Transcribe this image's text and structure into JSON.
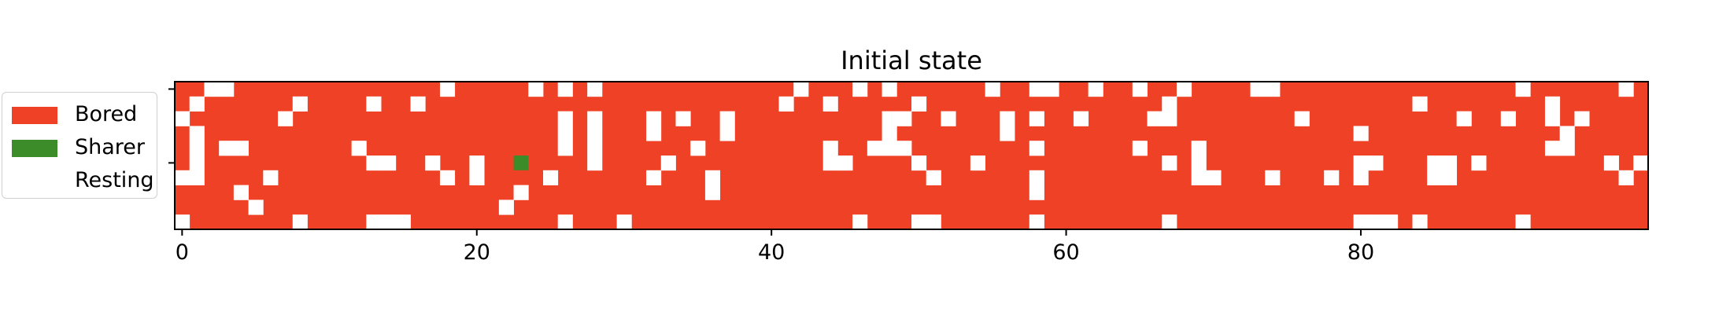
{
  "chart_data": {
    "type": "heatmap",
    "title": "Initial state",
    "xlabel": "",
    "ylabel": "",
    "xlim": [
      -0.5,
      99.5
    ],
    "ylim": [
      -0.5,
      9.5
    ],
    "xticks": [
      0,
      20,
      40,
      60,
      80
    ],
    "xtick_labels": [
      "0",
      "20",
      "40",
      "60",
      "80"
    ],
    "yticks": [
      0,
      5
    ],
    "ytick_labels": [
      "",
      ""
    ],
    "grid": false,
    "legend": {
      "position": "left",
      "entries": [
        {
          "label": "Bored",
          "color": "#ee4125"
        },
        {
          "label": "Sharer",
          "color": "#3d8c2a"
        },
        {
          "label": "Resting",
          "color": "#ffffff"
        }
      ]
    },
    "states": {
      "B": "Bored",
      "S": "Sharer",
      "R": "Resting"
    },
    "rows": [
      "BBRRBBBBBBBBBBBBBBRBBBBBRBRBRBBBBBBBBBBBBBRBBBRBRBBBBBBRBBRRBBRBBRBBRBBBBRRBBBBBBBBBBBBBBBBRBBBBBBRB",
      "BRBBBBBBRBBBBRBBRBBBBBBBBBBBBBBBBBBBBBBBBRBBRBBBBBRBBBBBBBBBBBBBBBBRBBBBBBBBBBBBBBBBRBBBBBBBBRBBBBBBB",
      "RBBBBBBRBBBBBBBBBBBBBBBBBBRBRBBBRBRBBRBBBBBBBBBBRRBBRBBBRBRBBRBBBBRRBBBBBBBBRBBBBBBBBBBRBBRBBRBRBBBBBB",
      "BRBBBBBBBBBBBBBBBBBBBBBBBBRBRBBBRBBBBRBBBBBBBBBBRBBBBBBBRBBBBBBBBBBBBBBBBBBBBBBBRBBBBBBBBBBBBBRBBBBBBB",
      "BRBRRBBBBBBBRBBBBBBBBBBBBBRBRBBBBBBRBBBBBBBBRBBRRRBBBBBBBBRBBBBBBRBBBRBBBBBBBBBBBBBBBBBBBBBBBRRBBBBBBB",
      "BRBBBBBBBBBBBRRBBRBBRBBBBBBBRBBBBRBBBBBBBBBBRRBBBBRBBBRBBBBBBBBBBBBRBRBBBBBBBBBBRRBBBRRBRBBBBBBBBRBRBBBB",
      "RRBBBBRBBBBBBBBBBBRBRBBBBRBBBBBBRBBBRBBBBBBBBBBBBBBRBBBBBBRBBBBBBBBBBRRBBBRBBBRBRBBBBRRBBBBBBBBBBBRBBBBRB",
      "BBBBRBBBBBBBBBBBBBBBBBBRBBBBBBBBBBBBRBBBBBBBBBBBBBBBBBBBBBRBBBBBBBBBBBBBBBBBBBBBBBBBBBBBBBBBBBBBBBBBBB",
      "BBBBBRBBBBBBBBBBBBBBBBRBBBBBBBBBBBBBBBBBBBBBBBBBBBBBBBBBBBBBBBBBBBBBBBBBBBBBBBBBBBBBBBBBBBBBBBBBBBBB",
      "RBBBBBBBRBBBBRRRBBBBBBBBBBRBBBRBBBBBBBBBBBBBBBRBBBRRBBBBBBRBBBBBBBBRBBBBBBBBBBBBRRRBRBBBBBBRBBBBBBBBBB"
    ],
    "layers": [
      {
        "state": "R",
        "cells": [
          [
            0,
            0
          ],
          [
            3,
            0
          ],
          [
            4,
            0
          ],
          [
            18,
            0
          ],
          [
            24,
            0
          ],
          [
            26,
            0
          ],
          [
            28,
            0
          ],
          [
            38,
            0
          ],
          [
            43,
            0
          ],
          [
            45,
            0
          ],
          [
            48,
            0
          ],
          [
            49,
            0
          ],
          [
            54,
            0
          ],
          [
            58,
            0
          ],
          [
            60,
            0
          ],
          [
            61,
            0
          ],
          [
            63,
            0
          ],
          [
            66,
            0
          ],
          [
            69,
            0
          ],
          [
            72,
            0
          ],
          [
            74,
            0
          ],
          [
            75,
            0
          ],
          [
            81,
            0
          ],
          [
            90,
            0
          ],
          [
            98,
            0
          ],
          [
            1,
            1
          ],
          [
            8,
            1
          ],
          [
            13,
            1
          ],
          [
            16,
            1
          ],
          [
            40,
            1
          ],
          [
            42,
            1
          ],
          [
            45,
            1
          ],
          [
            48,
            1
          ],
          [
            49,
            1
          ],
          [
            54,
            1
          ],
          [
            56,
            1
          ],
          [
            63,
            1
          ],
          [
            67,
            1
          ],
          [
            69,
            1
          ],
          [
            73,
            1
          ],
          [
            78,
            1
          ],
          [
            80,
            1
          ],
          [
            81,
            1
          ],
          [
            90,
            1
          ],
          [
            93,
            1
          ],
          [
            0,
            2
          ],
          [
            7,
            2
          ],
          [
            26,
            2
          ],
          [
            28,
            2
          ],
          [
            32,
            2
          ],
          [
            34,
            2
          ],
          [
            37,
            2
          ],
          [
            48,
            2
          ],
          [
            50,
            2
          ],
          [
            54,
            2
          ],
          [
            63,
            2
          ],
          [
            66,
            2
          ],
          [
            67,
            2
          ],
          [
            74,
            2
          ],
          [
            81,
            2
          ],
          [
            84,
            2
          ],
          [
            87,
            2
          ],
          [
            89,
            2
          ],
          [
            92,
            2
          ],
          [
            1,
            3
          ],
          [
            26,
            3
          ],
          [
            28,
            3
          ],
          [
            32,
            3
          ],
          [
            37,
            3
          ],
          [
            48,
            3
          ],
          [
            56,
            3
          ],
          [
            65,
            3
          ],
          [
            69,
            3
          ],
          [
            74,
            3
          ],
          [
            81,
            3
          ],
          [
            84,
            3
          ],
          [
            92,
            3
          ],
          [
            1,
            4
          ],
          [
            3,
            4
          ],
          [
            4,
            4
          ],
          [
            12,
            4
          ],
          [
            26,
            4
          ],
          [
            28,
            4
          ],
          [
            35,
            4
          ],
          [
            44,
            4
          ],
          [
            47,
            4
          ],
          [
            48,
            4
          ],
          [
            49,
            4
          ],
          [
            58,
            4
          ],
          [
            63,
            4
          ],
          [
            67,
            4
          ],
          [
            69,
            4
          ],
          [
            92,
            4
          ],
          [
            93,
            4
          ],
          [
            90,
            4
          ],
          [
            1,
            5
          ],
          [
            12,
            5
          ],
          [
            13,
            5
          ],
          [
            16,
            5
          ],
          [
            18,
            5
          ],
          [
            20,
            5
          ],
          [
            28,
            5
          ],
          [
            33,
            5
          ],
          [
            44,
            5
          ],
          [
            45,
            5
          ],
          [
            50,
            5
          ],
          [
            53,
            5
          ],
          [
            67,
            5
          ],
          [
            69,
            5
          ],
          [
            79,
            5
          ],
          [
            80,
            5
          ],
          [
            84,
            5
          ],
          [
            85,
            5
          ],
          [
            87,
            5
          ],
          [
            90,
            5
          ],
          [
            92,
            5
          ],
          [
            95,
            5
          ],
          [
            0,
            6
          ],
          [
            1,
            6
          ],
          [
            6,
            6
          ],
          [
            18,
            6
          ],
          [
            20,
            6
          ],
          [
            25,
            6
          ],
          [
            32,
            6
          ],
          [
            36,
            6
          ],
          [
            51,
            6
          ],
          [
            58,
            6
          ],
          [
            69,
            6
          ],
          [
            70,
            6
          ],
          [
            71,
            6
          ],
          [
            72,
            6
          ],
          [
            75,
            6
          ],
          [
            78,
            6
          ],
          [
            80,
            6
          ],
          [
            84,
            6
          ],
          [
            85,
            6
          ],
          [
            97,
            6
          ],
          [
            98,
            6
          ],
          [
            23,
            7
          ],
          [
            36,
            7
          ],
          [
            58,
            7
          ],
          [
            79,
            7
          ],
          [
            80,
            7
          ],
          [
            88,
            7
          ],
          [
            90,
            7
          ],
          [
            93,
            7
          ],
          [
            96,
            7
          ],
          [
            99,
            7
          ],
          [
            0,
            8
          ],
          [
            5,
            8
          ],
          [
            8,
            8
          ],
          [
            11,
            8
          ],
          [
            13,
            8
          ],
          [
            20,
            8
          ],
          [
            22,
            8
          ],
          [
            25,
            8
          ],
          [
            38,
            8
          ],
          [
            42,
            8
          ],
          [
            48,
            8
          ],
          [
            52,
            8
          ],
          [
            57,
            8
          ],
          [
            58,
            8
          ],
          [
            59,
            8
          ],
          [
            62,
            8
          ],
          [
            65,
            8
          ],
          [
            70,
            8
          ],
          [
            74,
            8
          ],
          [
            75,
            8
          ],
          [
            79,
            8
          ],
          [
            80,
            8
          ],
          [
            84,
            8
          ],
          [
            85,
            8
          ],
          [
            86,
            8
          ],
          [
            88,
            8
          ],
          [
            89,
            8
          ],
          [
            91,
            8
          ],
          [
            94,
            8
          ],
          [
            97,
            8
          ],
          [
            99,
            8
          ],
          [
            3,
            9
          ],
          [
            5,
            9
          ],
          [
            8,
            9
          ],
          [
            10,
            9
          ],
          [
            11,
            9
          ],
          [
            25,
            9
          ],
          [
            34,
            9
          ],
          [
            37,
            9
          ],
          [
            41,
            9
          ],
          [
            43,
            9
          ],
          [
            48,
            9
          ],
          [
            57,
            9
          ],
          [
            63,
            9
          ],
          [
            66,
            9
          ],
          [
            84,
            9
          ],
          [
            85,
            9
          ],
          [
            87,
            9
          ],
          [
            90,
            9
          ],
          [
            95,
            9
          ],
          [
            98,
            9
          ]
        ],
        "note_rows_from_top": true
      }
    ]
  },
  "legend_items": [
    {
      "label": "Bored",
      "color": "#ee4125"
    },
    {
      "label": "Sharer",
      "color": "#3d8c2a"
    },
    {
      "label": "Resting",
      "color": "#ffffff"
    }
  ]
}
